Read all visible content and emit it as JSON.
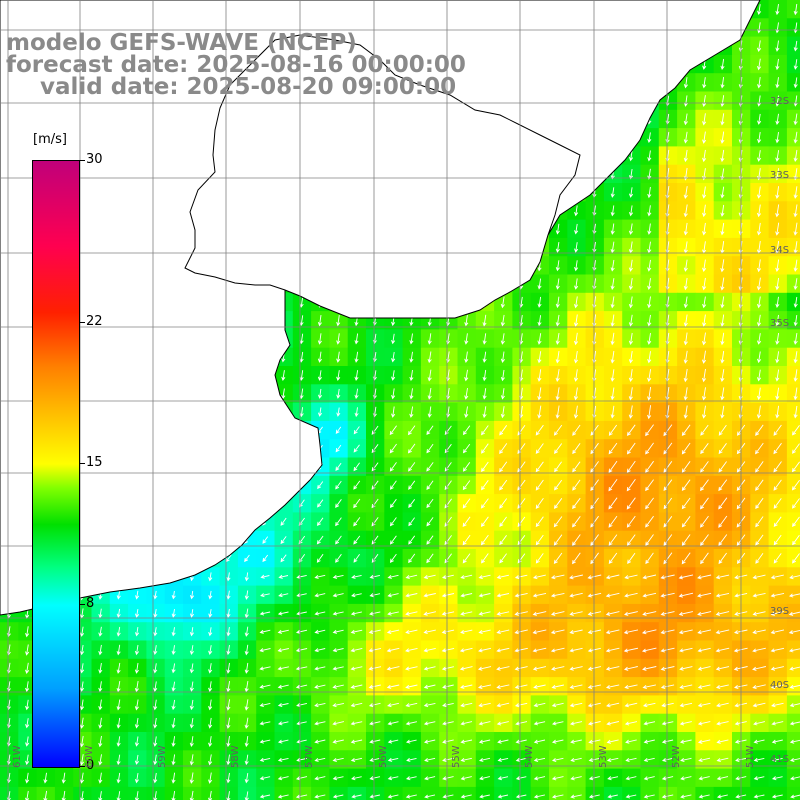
{
  "title": {
    "line1": "modelo GEFS-WAVE (NCEP)",
    "line2": "forecast date: 2025-08-16 00:00:00",
    "line3": "valid date: 2025-08-20 09:00:00"
  },
  "colorbar": {
    "unit": "[m/s]",
    "ticks": [
      "30",
      "22",
      "15",
      "8",
      "0"
    ],
    "tick_values": [
      30,
      22,
      15,
      8,
      0
    ]
  },
  "lat_labels": [
    "32S",
    "33S",
    "34S",
    "35S",
    "39S",
    "40S",
    "41S"
  ],
  "lon_labels": [
    "61W",
    "60W",
    "59W",
    "58W",
    "57W",
    "56W",
    "55W",
    "54W",
    "53W",
    "52W",
    "51W"
  ],
  "colors": {
    "land": "#ffffff",
    "coast": "#000000",
    "grid": "#808080",
    "vector": "#ffffff",
    "title": "#8a8a8a"
  },
  "chart_data": {
    "type": "heatmap",
    "variable": "wind speed",
    "unit": "m/s",
    "value_range": [
      0,
      30
    ],
    "vectors": true
  }
}
